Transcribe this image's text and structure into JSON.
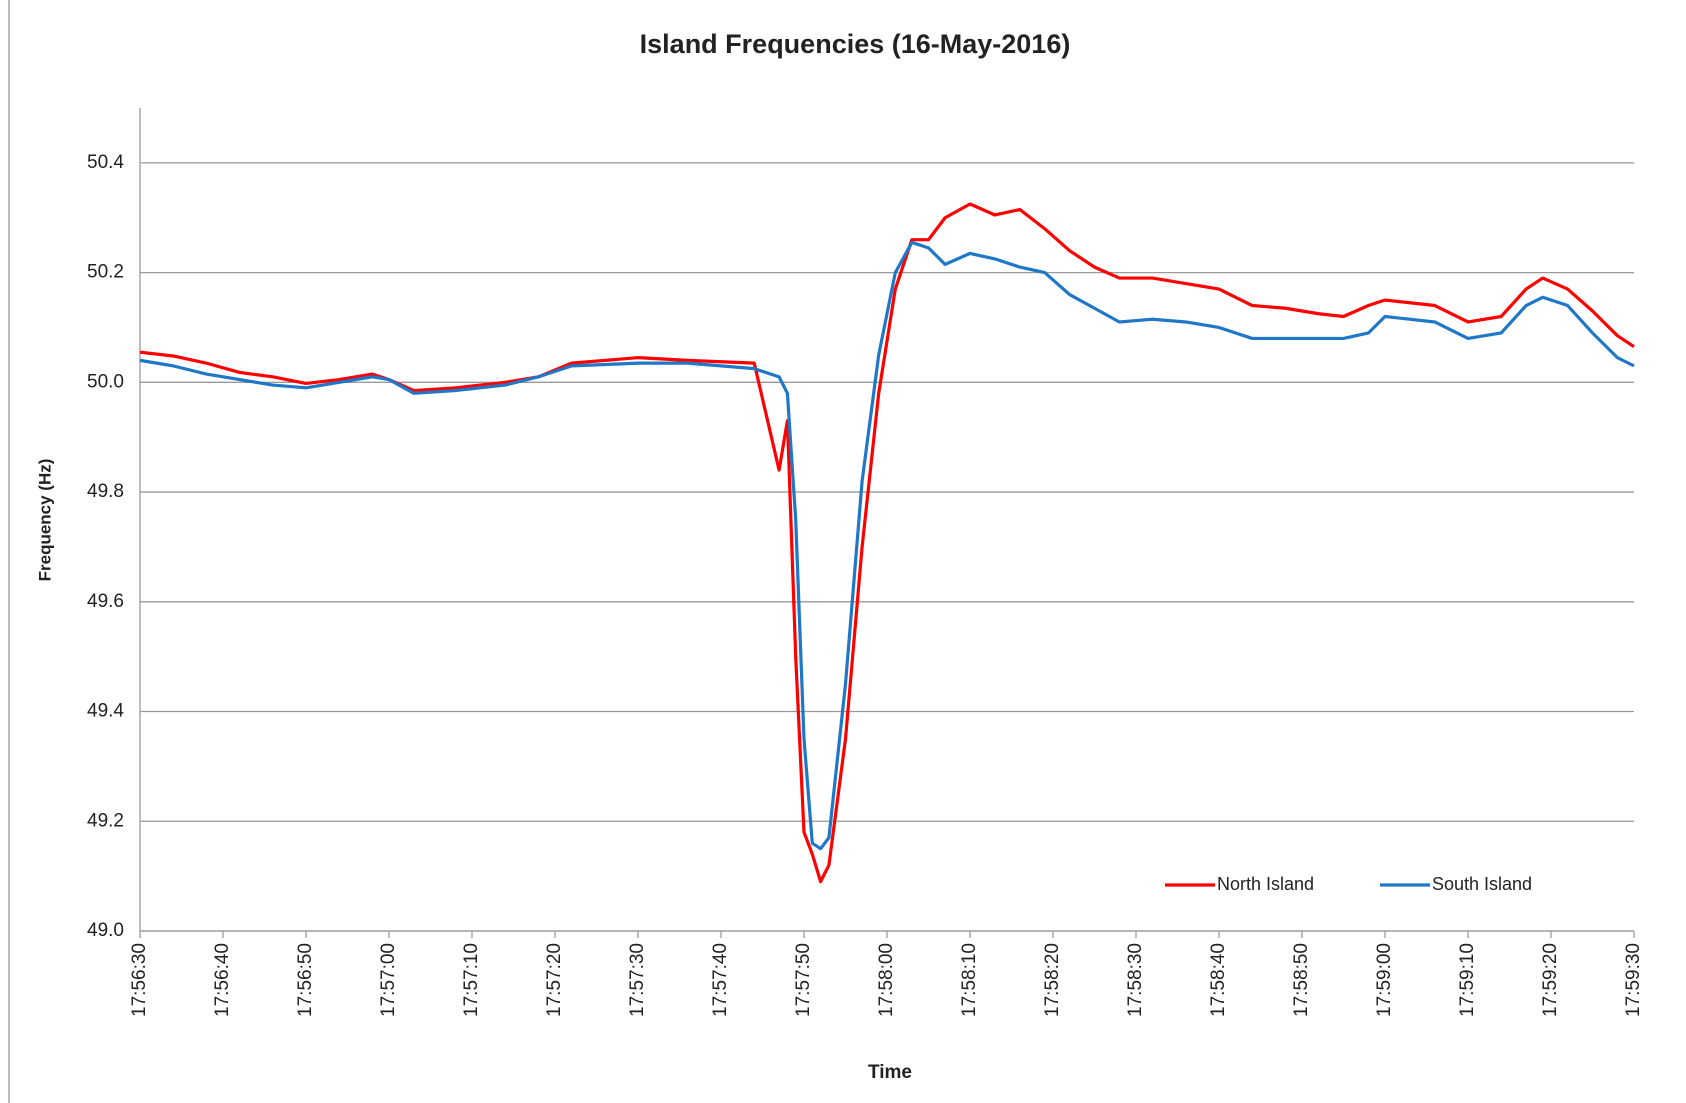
{
  "chart_data": {
    "type": "line",
    "title": "Island Frequencies (16-May-2016)",
    "xlabel": "Time",
    "ylabel": "Frequency (Hz)",
    "x": [
      "17:56:30",
      "17:56:34",
      "17:56:38",
      "17:56:42",
      "17:56:46",
      "17:56:50",
      "17:56:54",
      "17:56:58",
      "17:57:00",
      "17:57:03",
      "17:57:08",
      "17:57:14",
      "17:57:18",
      "17:57:22",
      "17:57:30",
      "17:57:36",
      "17:57:44",
      "17:57:47",
      "17:57:48",
      "17:57:49",
      "17:57:50",
      "17:57:51",
      "17:57:52",
      "17:57:53",
      "17:57:55",
      "17:57:57",
      "17:57:59",
      "17:58:01",
      "17:58:03",
      "17:58:05",
      "17:58:07",
      "17:58:10",
      "17:58:13",
      "17:58:16",
      "17:58:19",
      "17:58:22",
      "17:58:25",
      "17:58:28",
      "17:58:32",
      "17:58:36",
      "17:58:40",
      "17:58:44",
      "17:58:48",
      "17:58:52",
      "17:58:55",
      "17:58:58",
      "17:59:00",
      "17:59:06",
      "17:59:10",
      "17:59:14",
      "17:59:17",
      "17:59:19",
      "17:59:22",
      "17:59:25",
      "17:59:28",
      "17:59:30"
    ],
    "series": [
      {
        "name": "North Island",
        "color": "#ff0000",
        "values": [
          50.055,
          50.048,
          50.035,
          50.018,
          50.01,
          49.998,
          50.005,
          50.015,
          50.005,
          49.985,
          49.99,
          50.0,
          50.01,
          50.035,
          50.045,
          50.04,
          50.035,
          49.84,
          49.93,
          49.5,
          49.18,
          49.14,
          49.09,
          49.12,
          49.35,
          49.7,
          49.98,
          50.17,
          50.26,
          50.26,
          50.3,
          50.325,
          50.305,
          50.315,
          50.28,
          50.24,
          50.21,
          50.19,
          50.19,
          50.18,
          50.17,
          50.14,
          50.135,
          50.125,
          50.12,
          50.14,
          50.15,
          50.14,
          50.11,
          50.12,
          50.17,
          50.19,
          50.17,
          50.13,
          50.085,
          50.065
        ]
      },
      {
        "name": "South Island",
        "color": "#1f77c8",
        "values": [
          50.04,
          50.03,
          50.015,
          50.005,
          49.995,
          49.99,
          50.0,
          50.01,
          50.005,
          49.98,
          49.985,
          49.995,
          50.01,
          50.03,
          50.035,
          50.035,
          50.025,
          50.01,
          49.98,
          49.75,
          49.35,
          49.16,
          49.15,
          49.17,
          49.45,
          49.82,
          50.05,
          50.2,
          50.255,
          50.245,
          50.215,
          50.235,
          50.225,
          50.21,
          50.2,
          50.16,
          50.135,
          50.11,
          50.115,
          50.11,
          50.1,
          50.08,
          50.08,
          50.08,
          50.08,
          50.09,
          50.12,
          50.11,
          50.08,
          50.09,
          50.14,
          50.155,
          50.14,
          50.09,
          50.045,
          50.03
        ]
      }
    ],
    "xlim": [
      "17:56:30",
      "17:59:30"
    ],
    "xticks": [
      "17:56:30",
      "17:56:40",
      "17:56:50",
      "17:57:00",
      "17:57:10",
      "17:57:20",
      "17:57:30",
      "17:57:40",
      "17:57:50",
      "17:58:00",
      "17:58:10",
      "17:58:20",
      "17:58:30",
      "17:58:40",
      "17:58:50",
      "17:59:00",
      "17:59:10",
      "17:59:20",
      "17:59:30"
    ],
    "ylim": [
      49,
      50.5
    ],
    "yticks": [
      {
        "value": 49,
        "label": "49.0"
      },
      49.2,
      49.4,
      49.6,
      49.8,
      {
        "value": 50,
        "label": "50.0"
      },
      50.2,
      50.4
    ],
    "grid": true,
    "legend": "lower right"
  }
}
